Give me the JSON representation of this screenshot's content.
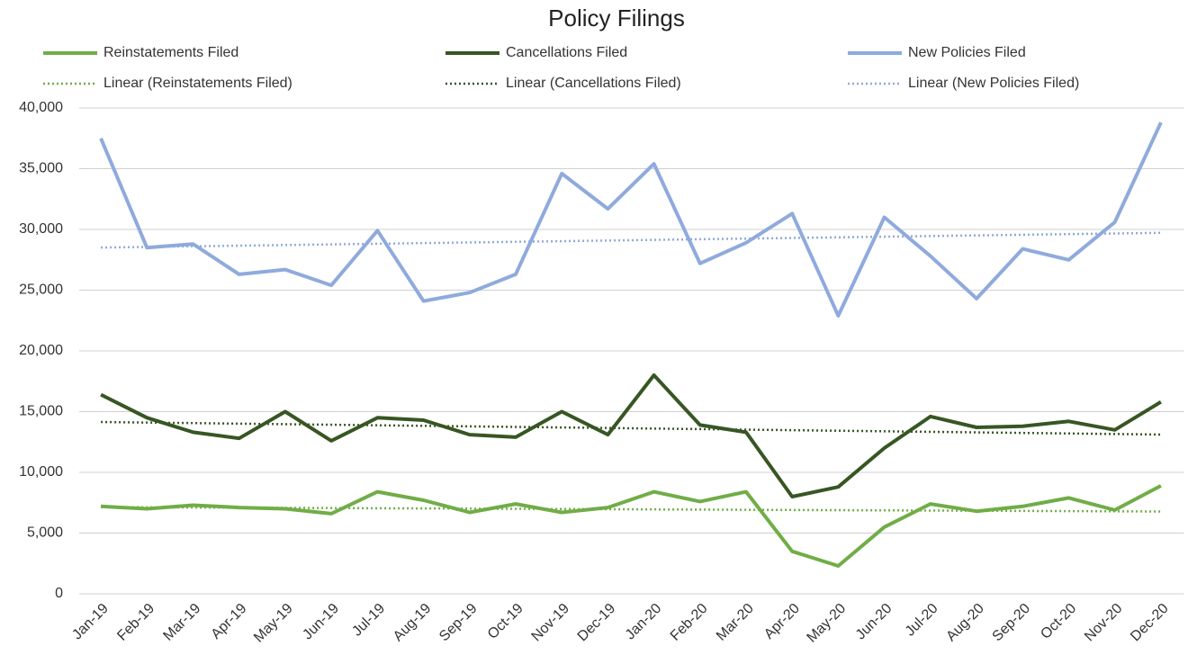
{
  "chart_data": {
    "type": "line",
    "title": "Policy Filings",
    "categories": [
      "Jan-19",
      "Feb-19",
      "Mar-19",
      "Apr-19",
      "May-19",
      "Jun-19",
      "Jul-19",
      "Aug-19",
      "Sep-19",
      "Oct-19",
      "Nov-19",
      "Dec-19",
      "Jan-20",
      "Feb-20",
      "Mar-20",
      "Apr-20",
      "May-20",
      "Jun-20",
      "Jul-20",
      "Aug-20",
      "Sep-20",
      "Oct-20",
      "Nov-20",
      "Dec-20"
    ],
    "series": [
      {
        "name": "Reinstatements Filed",
        "color": "#70ad47",
        "values": [
          7200,
          7000,
          7300,
          7100,
          7000,
          6600,
          8400,
          7700,
          6700,
          7400,
          6700,
          7100,
          8400,
          7600,
          8400,
          3500,
          2300,
          5500,
          7400,
          6800,
          7200,
          7900,
          6900,
          8900
        ],
        "trendline": {
          "name": "Linear (Reinstatements Filed)",
          "type": "linear"
        }
      },
      {
        "name": "Cancellations Filed",
        "color": "#375623",
        "values": [
          16400,
          14500,
          13300,
          12800,
          15000,
          12600,
          14500,
          14300,
          13100,
          12900,
          15000,
          13100,
          18000,
          13900,
          13300,
          8000,
          8800,
          12000,
          14600,
          13700,
          13800,
          14200,
          13500,
          15800
        ],
        "trendline": {
          "name": "Linear (Cancellations Filed)",
          "type": "linear"
        }
      },
      {
        "name": "New Policies Filed",
        "color": "#8faadc",
        "values": [
          37500,
          28500,
          28800,
          26300,
          26700,
          25400,
          29900,
          24100,
          24800,
          26300,
          34600,
          31700,
          35400,
          27200,
          28900,
          31300,
          22900,
          31000,
          27800,
          24300,
          28400,
          27500,
          30600,
          38800
        ],
        "trendline": {
          "name": "Linear (New Policies Filed)",
          "type": "linear"
        }
      }
    ],
    "ylim": [
      0,
      40000
    ],
    "yticks": [
      0,
      {
        "value": 5000,
        "label": "5,000"
      },
      {
        "value": 10000,
        "label": "10,000"
      },
      {
        "value": 15000,
        "label": "15,000"
      },
      {
        "value": 20000,
        "label": "20,000"
      },
      {
        "value": 25000,
        "label": "25,000"
      },
      {
        "value": 30000,
        "label": "30,000"
      },
      {
        "value": 35000,
        "label": "35,000"
      },
      {
        "value": 40000,
        "label": "40,000"
      }
    ],
    "grid": true,
    "legend": "top"
  }
}
